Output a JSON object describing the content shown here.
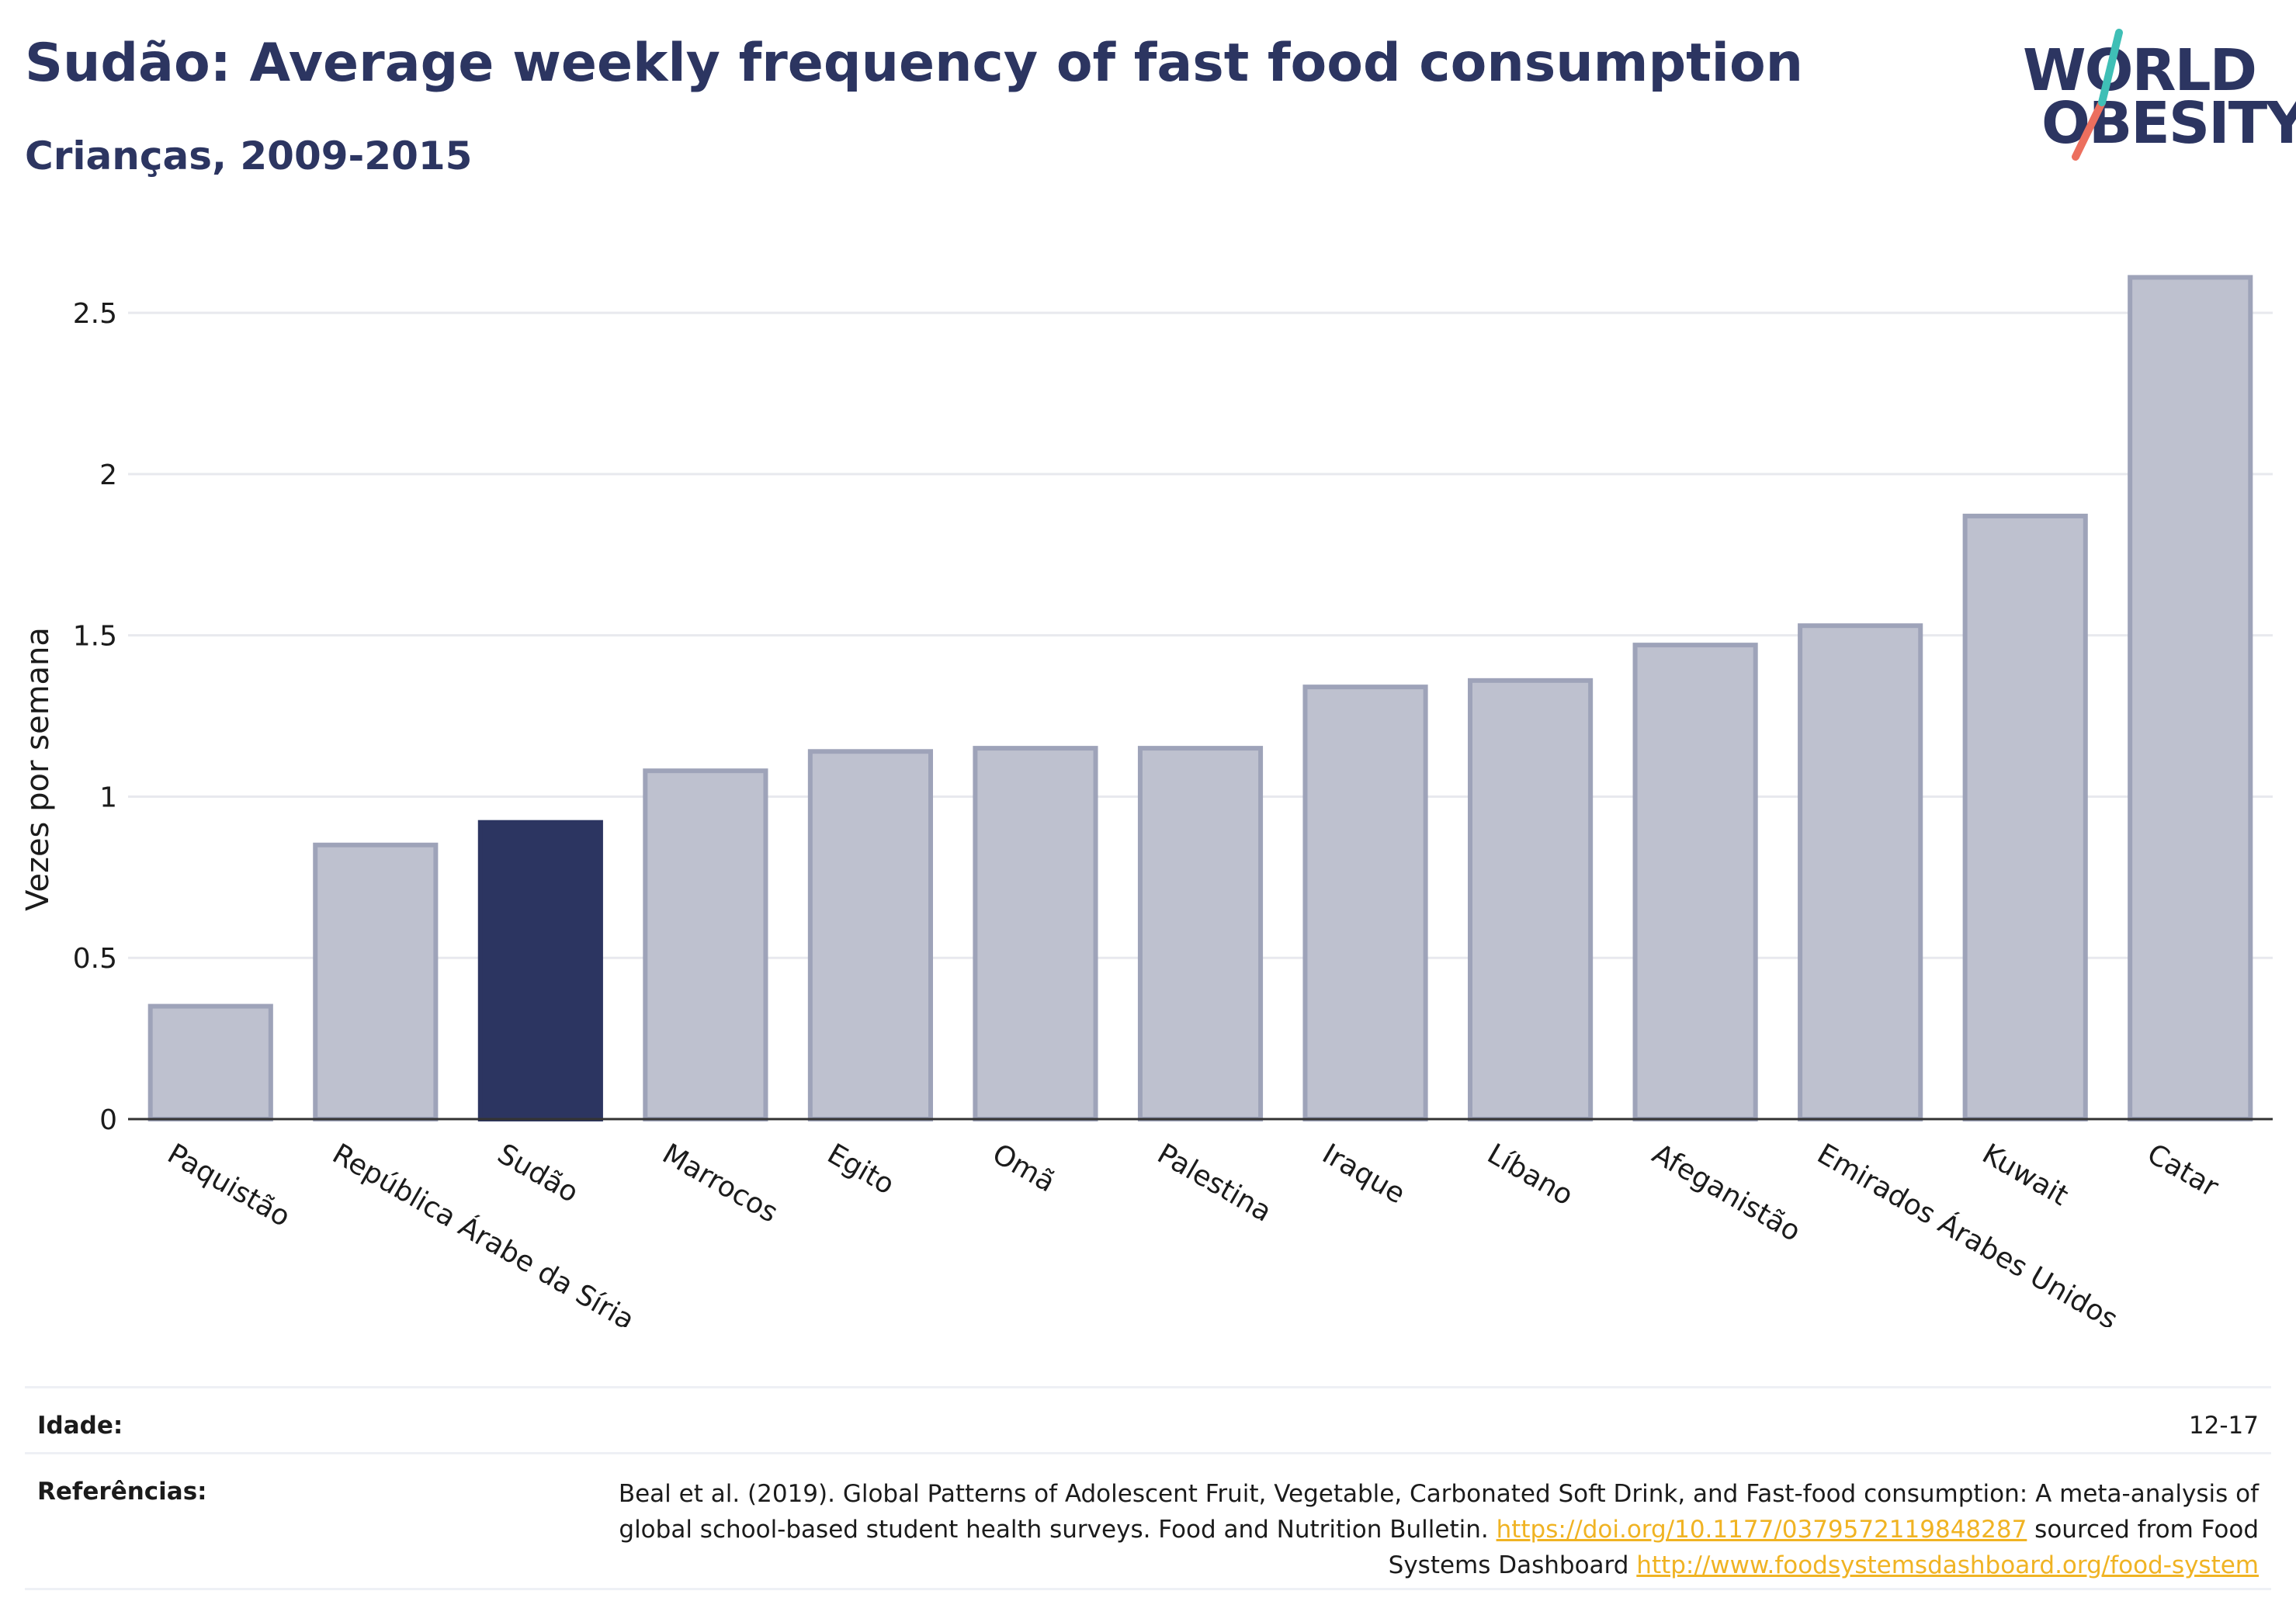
{
  "header": {
    "title": "Sudão: Average weekly frequency of fast food consumption",
    "subtitle": "Crianças, 2009-2015"
  },
  "logo": {
    "line1": "WORLD",
    "line2": "OBESITY"
  },
  "colors": {
    "highlight": "#2c3561",
    "bar_fill": "#bec1cf",
    "bar_stroke": "#9ea3b9",
    "title": "#2c3561",
    "link": "#f0b323",
    "logo_teal": "#3fbfb6",
    "logo_coral": "#ec6f5e"
  },
  "chart_data": {
    "type": "bar",
    "ylabel": "Vezes por semana",
    "xlabel": "",
    "ylim": [
      0,
      2.5
    ],
    "y_ticks": [
      0,
      0.5,
      1,
      1.5,
      2,
      2.5
    ],
    "y_tick_labels": [
      "0",
      "0.5",
      "1",
      "1.5",
      "2",
      "2.5"
    ],
    "grid": true,
    "highlight": "Sudão",
    "categories": [
      "Paquistão",
      "República Árabe da Síria",
      "Sudão",
      "Marrocos",
      "Egito",
      "Omã",
      "Palestina",
      "Iraque",
      "Líbano",
      "Afeganistão",
      "Emirados Árabes Unidos",
      "Kuwait",
      "Catar"
    ],
    "values": [
      0.35,
      0.85,
      0.92,
      1.08,
      1.14,
      1.15,
      1.15,
      1.34,
      1.36,
      1.47,
      1.53,
      1.87,
      2.61
    ]
  },
  "footer": {
    "age_label": "Idade:",
    "age_value": "12-17",
    "ref_label": "Referências:",
    "ref_text_1": "Beal et al. (2019). Global Patterns of Adolescent Fruit, Vegetable, Carbonated Soft Drink, and Fast-food consumption: A meta-analysis of global school-based student health surveys. Food and Nutrition Bulletin. ",
    "ref_link_1": "https://doi.org/10.1177/0379572119848287",
    "ref_text_2": " sourced from Food Systems Dashboard ",
    "ref_link_2": "http://www.foodsystemsdashboard.org/food-system"
  }
}
